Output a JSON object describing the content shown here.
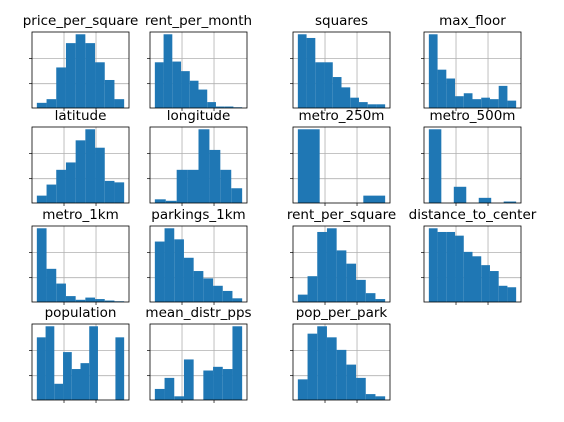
{
  "style": {
    "bar_color": "#1f77b4",
    "grid_color": "#b0b0b0",
    "frame_color": "#000000"
  },
  "chart_data": [
    {
      "type": "bar",
      "title": "price_per_square",
      "grid": true,
      "values": [
        0.07,
        0.12,
        0.55,
        0.88,
        1.0,
        0.88,
        0.62,
        0.38,
        0.12
      ]
    },
    {
      "type": "bar",
      "title": "rent_per_month",
      "grid": true,
      "values": [
        0.62,
        1.0,
        0.63,
        0.5,
        0.37,
        0.25,
        0.08,
        0.02,
        0.02,
        0.01
      ]
    },
    {
      "type": "bar",
      "title": "squares",
      "grid": true,
      "values": [
        1.0,
        0.95,
        0.62,
        0.62,
        0.42,
        0.28,
        0.14,
        0.08,
        0.05,
        0.05
      ]
    },
    {
      "type": "bar",
      "title": "max_floor",
      "grid": true,
      "values": [
        1.0,
        0.52,
        0.4,
        0.16,
        0.2,
        0.12,
        0.14,
        0.12,
        0.3,
        0.1
      ]
    },
    {
      "type": "bar",
      "title": "latitude",
      "grid": true,
      "values": [
        0.1,
        0.25,
        0.45,
        0.55,
        0.85,
        1.0,
        0.75,
        0.3,
        0.28
      ]
    },
    {
      "type": "bar",
      "title": "longitude",
      "grid": true,
      "values": [
        0.05,
        0.03,
        0.45,
        0.45,
        1.0,
        0.72,
        0.45,
        0.2
      ]
    },
    {
      "type": "bar",
      "title": "metro_250m",
      "grid": true,
      "values": [
        1.0,
        0.0,
        0.0,
        0.1
      ]
    },
    {
      "type": "bar",
      "title": "metro_500m",
      "grid": true,
      "values": [
        1.0,
        0.0,
        0.22,
        0.0,
        0.07,
        0.0,
        0.02
      ]
    },
    {
      "type": "bar",
      "title": "metro_1km",
      "grid": true,
      "values": [
        1.0,
        0.45,
        0.25,
        0.08,
        0.03,
        0.06,
        0.04,
        0.02,
        0.01
      ]
    },
    {
      "type": "bar",
      "title": "parkings_1km",
      "grid": true,
      "values": [
        0.82,
        1.0,
        0.85,
        0.6,
        0.42,
        0.32,
        0.22,
        0.15,
        0.05
      ]
    },
    {
      "type": "bar",
      "title": "rent_per_square",
      "grid": true,
      "values": [
        0.1,
        0.35,
        0.95,
        1.0,
        0.7,
        0.52,
        0.3,
        0.12,
        0.04
      ]
    },
    {
      "type": "bar",
      "title": "distance_to_center",
      "grid": true,
      "values": [
        1.0,
        0.95,
        0.95,
        0.9,
        0.68,
        0.62,
        0.5,
        0.42,
        0.22,
        0.2
      ]
    },
    {
      "type": "bar",
      "title": "population",
      "grid": true,
      "values": [
        0.85,
        1.0,
        0.22,
        0.65,
        0.42,
        0.5,
        1.0,
        0.0,
        0.0,
        0.85
      ]
    },
    {
      "type": "bar",
      "title": "mean_distr_pps",
      "grid": true,
      "values": [
        0.15,
        0.3,
        0.05,
        0.55,
        0.0,
        0.4,
        0.45,
        0.42,
        1.0
      ]
    },
    {
      "type": "bar",
      "title": "pop_per_park",
      "grid": true,
      "values": [
        0.28,
        0.9,
        1.0,
        0.85,
        0.68,
        0.48,
        0.3,
        0.08,
        0.05
      ]
    }
  ]
}
